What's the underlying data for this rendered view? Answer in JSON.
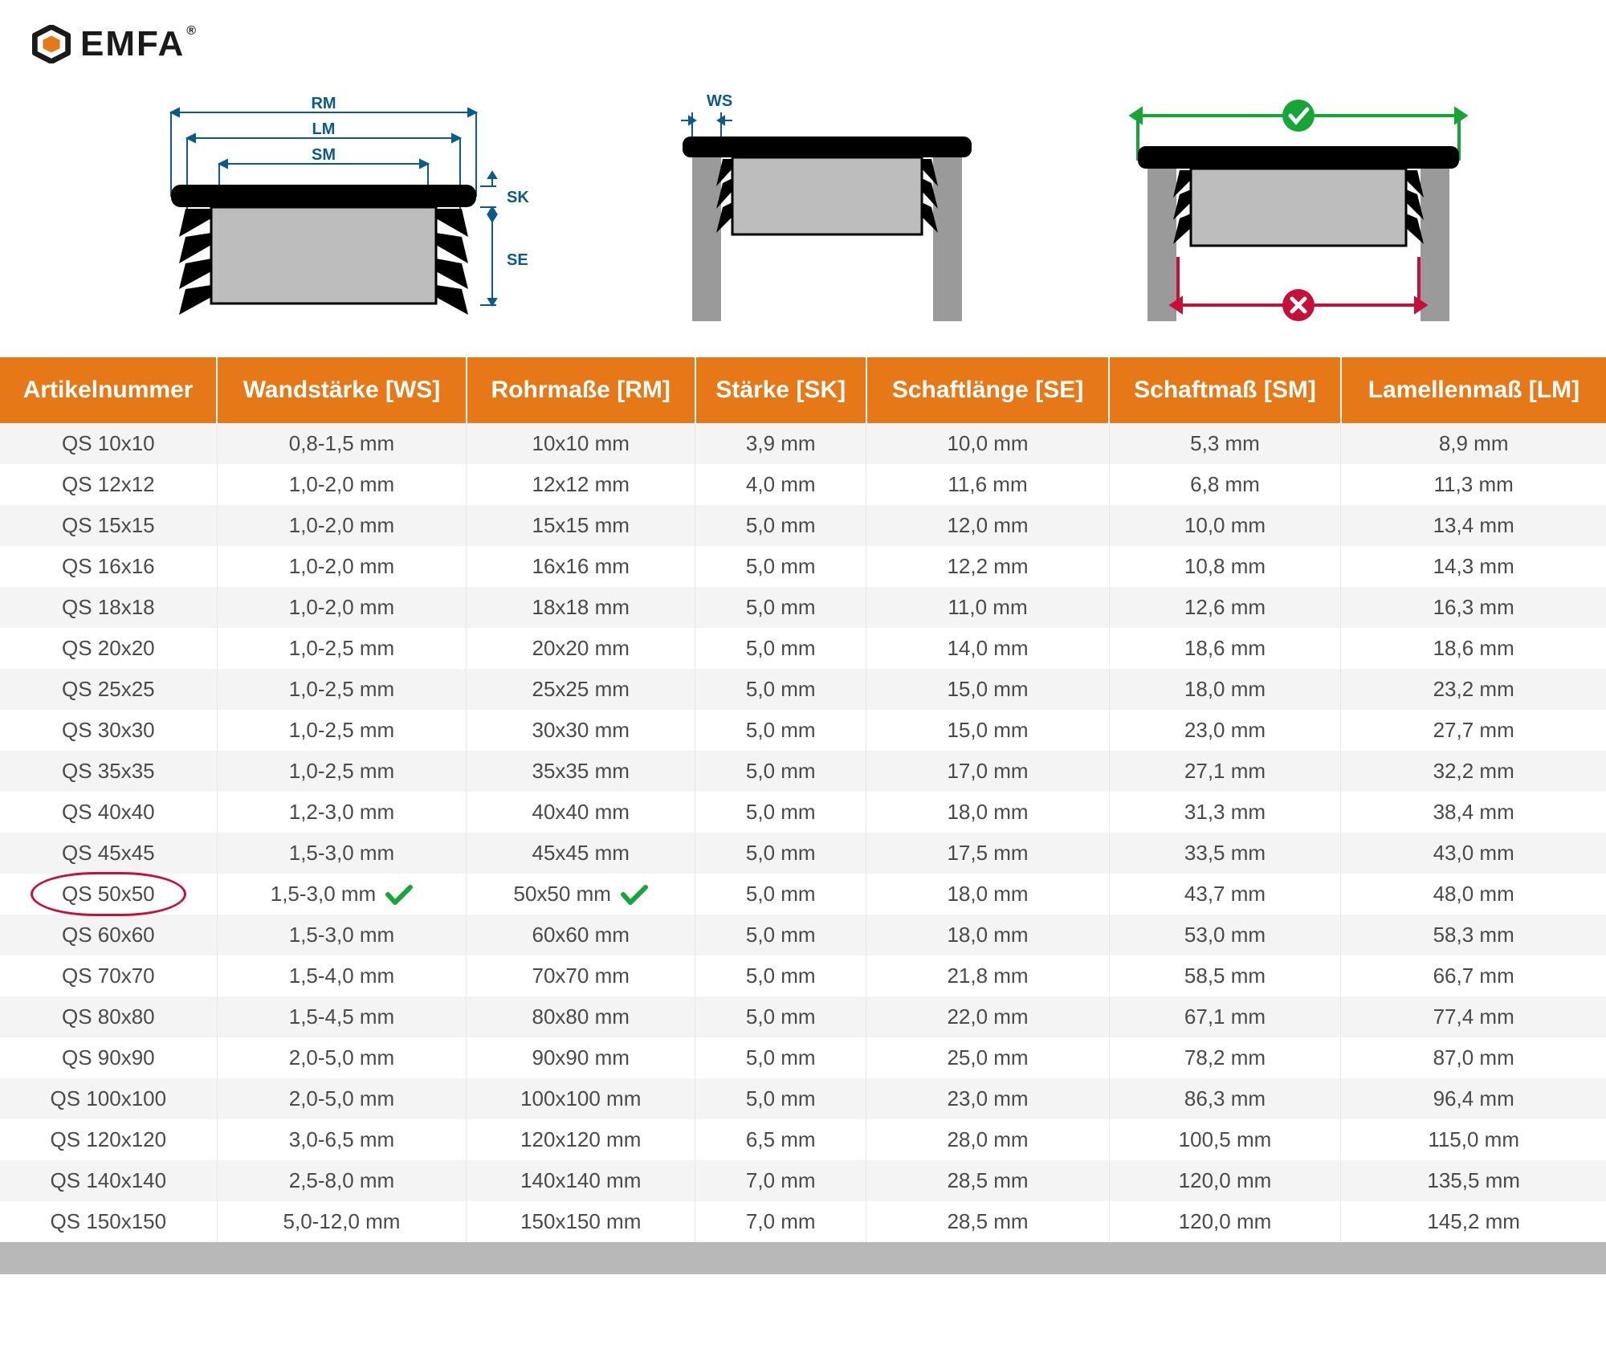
{
  "brand": {
    "name": "EMFA",
    "trademark": "®",
    "hex_color": "#e67817",
    "text_color": "#1a1a1a"
  },
  "diagram_labels": {
    "rm": "RM",
    "lm": "LM",
    "sm": "SM",
    "sk": "SK",
    "se": "SE",
    "ws": "WS",
    "label_color": "#0a5a8c",
    "ok_color": "#16a637",
    "bad_color": "#c80f3a",
    "plug_black": "#000000",
    "plug_gray": "#bdbdbd",
    "tube_gray": "#9a9a9a"
  },
  "table": {
    "header_bg": "#e67817",
    "header_fg": "#ffffff",
    "row_even_bg": "#f4f4f4",
    "row_odd_bg": "#ffffff",
    "cell_fg": "#4a4a4a",
    "highlight_ring": "#c80f3a",
    "check_color": "#16a637",
    "columns": [
      "Artikelnummer",
      "Wandstärke [WS]",
      "Rohrmaße [RM]",
      "Stärke [SK]",
      "Schaftlänge [SE]",
      "Schaftmaß [SM]",
      "Lamellenmaß [LM]"
    ],
    "highlight_row_index": 11,
    "rows": [
      [
        "QS 10x10",
        "0,8-1,5 mm",
        "10x10 mm",
        "3,9 mm",
        "10,0 mm",
        "5,3 mm",
        "8,9 mm"
      ],
      [
        "QS 12x12",
        "1,0-2,0 mm",
        "12x12 mm",
        "4,0 mm",
        "11,6 mm",
        "6,8 mm",
        "11,3 mm"
      ],
      [
        "QS 15x15",
        "1,0-2,0 mm",
        "15x15 mm",
        "5,0 mm",
        "12,0 mm",
        "10,0 mm",
        "13,4 mm"
      ],
      [
        "QS 16x16",
        "1,0-2,0 mm",
        "16x16 mm",
        "5,0 mm",
        "12,2 mm",
        "10,8 mm",
        "14,3 mm"
      ],
      [
        "QS 18x18",
        "1,0-2,0 mm",
        "18x18 mm",
        "5,0 mm",
        "11,0 mm",
        "12,6 mm",
        "16,3 mm"
      ],
      [
        "QS 20x20",
        "1,0-2,5 mm",
        "20x20 mm",
        "5,0 mm",
        "14,0 mm",
        "18,6 mm",
        "18,6 mm"
      ],
      [
        "QS 25x25",
        "1,0-2,5 mm",
        "25x25 mm",
        "5,0 mm",
        "15,0 mm",
        "18,0 mm",
        "23,2 mm"
      ],
      [
        "QS 30x30",
        "1,0-2,5 mm",
        "30x30 mm",
        "5,0 mm",
        "15,0 mm",
        "23,0 mm",
        "27,7 mm"
      ],
      [
        "QS 35x35",
        "1,0-2,5 mm",
        "35x35 mm",
        "5,0 mm",
        "17,0 mm",
        "27,1 mm",
        "32,2 mm"
      ],
      [
        "QS 40x40",
        "1,2-3,0 mm",
        "40x40 mm",
        "5,0 mm",
        "18,0 mm",
        "31,3 mm",
        "38,4 mm"
      ],
      [
        "QS 45x45",
        "1,5-3,0 mm",
        "45x45 mm",
        "5,0 mm",
        "17,5 mm",
        "33,5 mm",
        "43,0 mm"
      ],
      [
        "QS 50x50",
        "1,5-3,0 mm",
        "50x50 mm",
        "5,0 mm",
        "18,0 mm",
        "43,7 mm",
        "48,0 mm"
      ],
      [
        "QS 60x60",
        "1,5-3,0 mm",
        "60x60 mm",
        "5,0 mm",
        "18,0 mm",
        "53,0 mm",
        "58,3 mm"
      ],
      [
        "QS 70x70",
        "1,5-4,0 mm",
        "70x70 mm",
        "5,0 mm",
        "21,8 mm",
        "58,5 mm",
        "66,7 mm"
      ],
      [
        "QS 80x80",
        "1,5-4,5 mm",
        "80x80 mm",
        "5,0 mm",
        "22,0 mm",
        "67,1 mm",
        "77,4 mm"
      ],
      [
        "QS 90x90",
        "2,0-5,0 mm",
        "90x90 mm",
        "5,0 mm",
        "25,0 mm",
        "78,2 mm",
        "87,0 mm"
      ],
      [
        "QS 100x100",
        "2,0-5,0 mm",
        "100x100 mm",
        "5,0 mm",
        "23,0 mm",
        "86,3 mm",
        "96,4 mm"
      ],
      [
        "QS 120x120",
        "3,0-6,5 mm",
        "120x120 mm",
        "6,5 mm",
        "28,0 mm",
        "100,5 mm",
        "115,0 mm"
      ],
      [
        "QS 140x140",
        "2,5-8,0 mm",
        "140x140 mm",
        "7,0 mm",
        "28,5 mm",
        "120,0 mm",
        "135,5 mm"
      ],
      [
        "QS 150x150",
        "5,0-12,0 mm",
        "150x150 mm",
        "7,0 mm",
        "28,5 mm",
        "120,0 mm",
        "145,2 mm"
      ]
    ]
  }
}
